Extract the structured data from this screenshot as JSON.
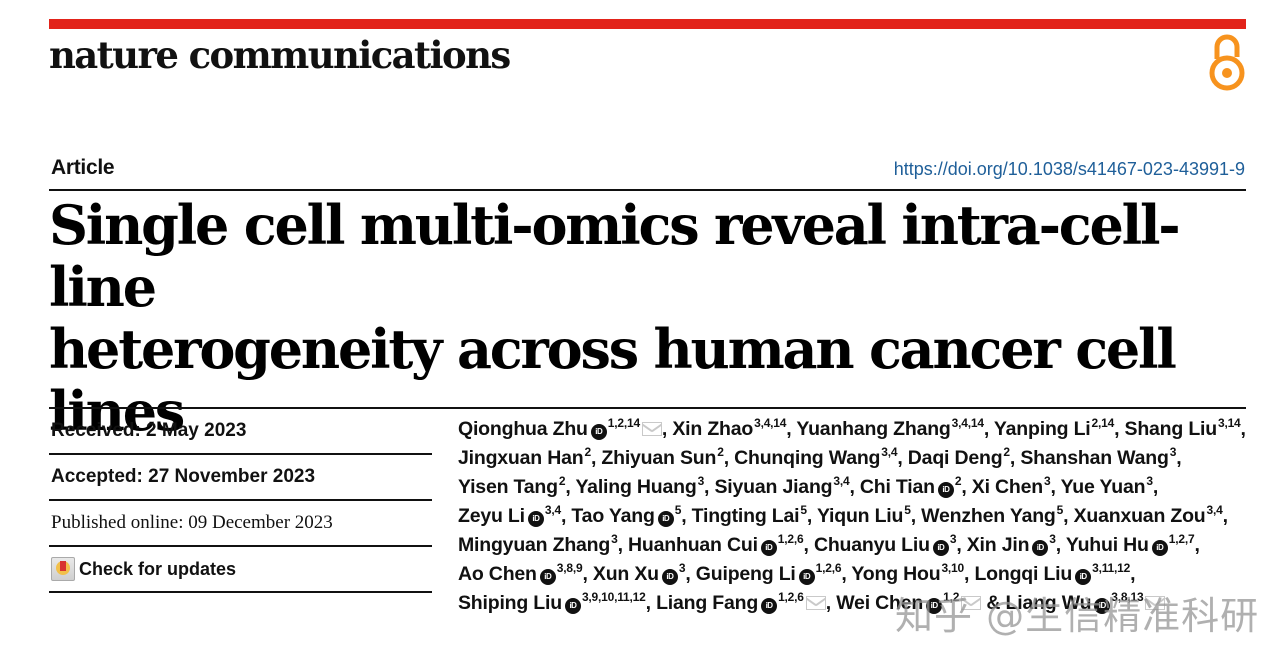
{
  "header": {
    "journal_name": "nature communications",
    "accent_color": "#e2231a",
    "open_access_icon": "open-access-lock-icon",
    "open_access_color": "#f7931e"
  },
  "article": {
    "type": "Article",
    "doi": "https://doi.org/10.1038/s41467-023-43991-9",
    "title_line1": "Single cell multi-omics reveal intra-cell-line",
    "title_line2": "heterogeneity across human cancer cell lines"
  },
  "dates": {
    "received": "Received: 2 May 2023",
    "accepted": "Accepted: 27 November 2023",
    "published": "Published online: 09 December 2023",
    "check_updates": "Check for updates"
  },
  "authors": [
    {
      "name": "Qionghua Zhu",
      "orcid": true,
      "aff": "1,2,14",
      "mail": true
    },
    {
      "name": "Xin Zhao",
      "orcid": false,
      "aff": "3,4,14"
    },
    {
      "name": "Yuanhang Zhang",
      "orcid": false,
      "aff": "3,4,14"
    },
    {
      "name": "Yanping Li",
      "orcid": false,
      "aff": "2,14"
    },
    {
      "name": "Shang Liu",
      "orcid": false,
      "aff": "3,14"
    },
    {
      "name": "Jingxuan Han",
      "orcid": false,
      "aff": "2"
    },
    {
      "name": "Zhiyuan Sun",
      "orcid": false,
      "aff": "2"
    },
    {
      "name": "Chunqing Wang",
      "orcid": false,
      "aff": "3,4"
    },
    {
      "name": "Daqi Deng",
      "orcid": false,
      "aff": "2"
    },
    {
      "name": "Shanshan Wang",
      "orcid": false,
      "aff": "3"
    },
    {
      "name": "Yisen Tang",
      "orcid": false,
      "aff": "2"
    },
    {
      "name": "Yaling Huang",
      "orcid": false,
      "aff": "3"
    },
    {
      "name": "Siyuan Jiang",
      "orcid": false,
      "aff": "3,4"
    },
    {
      "name": "Chi Tian",
      "orcid": true,
      "aff": "2"
    },
    {
      "name": "Xi Chen",
      "orcid": false,
      "aff": "3"
    },
    {
      "name": "Yue Yuan",
      "orcid": false,
      "aff": "3"
    },
    {
      "name": "Zeyu Li",
      "orcid": true,
      "aff": "3,4"
    },
    {
      "name": "Tao Yang",
      "orcid": true,
      "aff": "5"
    },
    {
      "name": "Tingting Lai",
      "orcid": false,
      "aff": "5"
    },
    {
      "name": "Yiqun Liu",
      "orcid": false,
      "aff": "5"
    },
    {
      "name": "Wenzhen Yang",
      "orcid": false,
      "aff": "5"
    },
    {
      "name": "Xuanxuan Zou",
      "orcid": false,
      "aff": "3,4"
    },
    {
      "name": "Mingyuan Zhang",
      "orcid": false,
      "aff": "3"
    },
    {
      "name": "Huanhuan Cui",
      "orcid": true,
      "aff": "1,2,6"
    },
    {
      "name": "Chuanyu Liu",
      "orcid": true,
      "aff": "3"
    },
    {
      "name": "Xin Jin",
      "orcid": true,
      "aff": "3"
    },
    {
      "name": "Yuhui Hu",
      "orcid": true,
      "aff": "1,2,7"
    },
    {
      "name": "Ao Chen",
      "orcid": true,
      "aff": "3,8,9"
    },
    {
      "name": "Xun Xu",
      "orcid": true,
      "aff": "3"
    },
    {
      "name": "Guipeng Li",
      "orcid": true,
      "aff": "1,2,6"
    },
    {
      "name": "Yong Hou",
      "orcid": false,
      "aff": "3,10"
    },
    {
      "name": "Longqi Liu",
      "orcid": true,
      "aff": "3,11,12"
    },
    {
      "name": "Shiping Liu",
      "orcid": true,
      "aff": "3,9,10,11,12"
    },
    {
      "name": "Liang Fang",
      "orcid": true,
      "aff": "1,2,6",
      "mail": true
    },
    {
      "name": "Wei Chen",
      "orcid": true,
      "aff": "1,2",
      "mail": true
    },
    {
      "name": "Liang Wu",
      "orcid": true,
      "aff": "3,8,13",
      "mail": true
    }
  ],
  "author_separators": {
    "comma": ", ",
    "final": " & "
  },
  "watermark": "知乎 @生信精准科研"
}
